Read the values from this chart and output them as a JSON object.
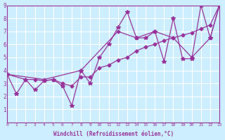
{
  "xlabel": "Windchill (Refroidissement éolien,°C)",
  "xlim": [
    0,
    23
  ],
  "ylim": [
    0,
    9
  ],
  "xticks": [
    0,
    1,
    2,
    3,
    4,
    5,
    6,
    7,
    8,
    9,
    10,
    11,
    12,
    13,
    14,
    15,
    16,
    17,
    18,
    19,
    20,
    21,
    22,
    23
  ],
  "yticks": [
    1,
    2,
    3,
    4,
    5,
    6,
    7,
    8,
    9
  ],
  "background_color": "#cceeff",
  "line_color": "#993399",
  "grid_color": "#ffffff",
  "series": [
    {
      "x": [
        0,
        1,
        2,
        3,
        4,
        5,
        6,
        7,
        8,
        9,
        10,
        11,
        12,
        13,
        14,
        15,
        16,
        17,
        18,
        19,
        20,
        21,
        22,
        23
      ],
      "y": [
        3.7,
        2.2,
        3.3,
        2.5,
        3.2,
        3.3,
        2.8,
        1.3,
        4.0,
        3.0,
        5.0,
        6.0,
        7.3,
        8.5,
        6.5,
        6.5,
        7.0,
        4.7,
        8.0,
        4.9,
        4.9,
        9.0,
        6.5,
        9.0
      ]
    },
    {
      "x": [
        0,
        2,
        3,
        4,
        5,
        6,
        7,
        8,
        9,
        10,
        11,
        12,
        13,
        14,
        15,
        16,
        17,
        18,
        19,
        20,
        21,
        22,
        23
      ],
      "y": [
        3.7,
        3.3,
        3.3,
        3.2,
        3.3,
        3.0,
        2.8,
        3.5,
        3.5,
        4.2,
        4.4,
        4.8,
        5.0,
        5.5,
        5.8,
        6.0,
        6.3,
        6.5,
        6.7,
        6.9,
        7.2,
        7.5,
        9.0
      ]
    },
    {
      "x": [
        0,
        4,
        8,
        12,
        14,
        16,
        18,
        20,
        22,
        23
      ],
      "y": [
        3.7,
        3.3,
        4.0,
        7.0,
        6.5,
        7.0,
        6.5,
        5.0,
        6.5,
        9.0
      ]
    }
  ]
}
